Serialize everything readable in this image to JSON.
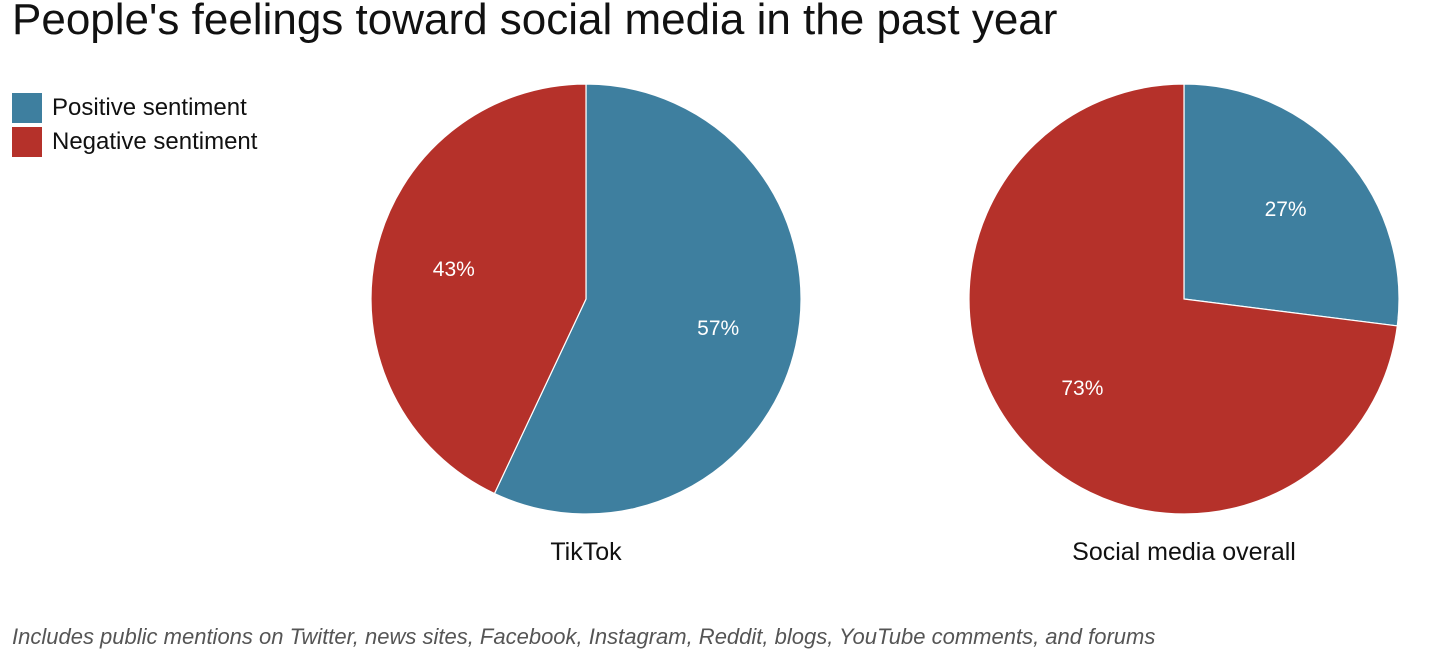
{
  "title": "People's feelings toward social media in the past year",
  "footnote": "Includes public mentions on Twitter, news sites, Facebook, Instagram, Reddit, blogs, YouTube comments, and forums",
  "chart_data": {
    "type": "pie",
    "title": "People's feelings toward social media in the past year",
    "legend_position": "top-left",
    "series_names": [
      "Positive sentiment",
      "Negative sentiment"
    ],
    "colors": {
      "Positive sentiment": "#3e7f9f",
      "Negative sentiment": "#b5312a"
    },
    "pies": [
      {
        "label": "TikTok",
        "slices": [
          {
            "name": "Positive sentiment",
            "value": 57,
            "label": "57%"
          },
          {
            "name": "Negative sentiment",
            "value": 43,
            "label": "43%"
          }
        ]
      },
      {
        "label": "Social media overall",
        "slices": [
          {
            "name": "Positive sentiment",
            "value": 27,
            "label": "27%"
          },
          {
            "name": "Negative sentiment",
            "value": 73,
            "label": "73%"
          }
        ]
      }
    ]
  }
}
